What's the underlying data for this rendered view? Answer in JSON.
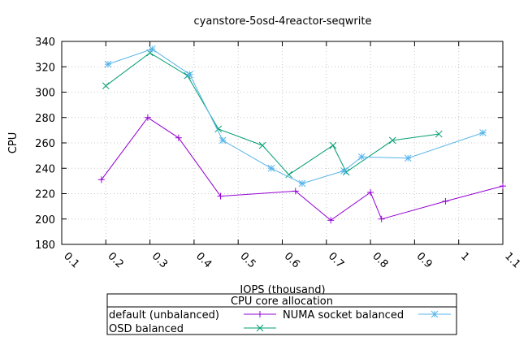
{
  "chart_data": {
    "type": "line",
    "title": "cyanstore-5osd-4reactor-seqwrite",
    "xlabel": "IOPS (thousand)",
    "ylabel": "CPU",
    "xlim": [
      0.1,
      1.1
    ],
    "ylim": [
      180,
      340
    ],
    "x_ticks": [
      "0.1",
      "0.2",
      "0.3",
      "0.4",
      "0.5",
      "0.6",
      "0.7",
      "0.8",
      "0.9",
      "1",
      "1.1"
    ],
    "y_ticks": [
      "180",
      "200",
      "220",
      "240",
      "260",
      "280",
      "300",
      "320",
      "340"
    ],
    "grid": true,
    "legend": {
      "title": "CPU core allocation",
      "placement": "below"
    },
    "series": [
      {
        "name": "default (unbalanced)",
        "color": "#9400d3",
        "marker": "plus",
        "points": [
          [
            0.19,
            231
          ],
          [
            0.295,
            280
          ],
          [
            0.365,
            264
          ],
          [
            0.46,
            218
          ],
          [
            0.63,
            222
          ],
          [
            0.71,
            199
          ],
          [
            0.8,
            221
          ],
          [
            0.825,
            200
          ],
          [
            0.97,
            214
          ],
          [
            1.1,
            226
          ]
        ]
      },
      {
        "name": "OSD balanced",
        "color": "#009e73",
        "marker": "x",
        "points": [
          [
            0.2,
            305
          ],
          [
            0.3,
            331
          ],
          [
            0.385,
            313
          ],
          [
            0.455,
            271
          ],
          [
            0.555,
            258
          ],
          [
            0.615,
            235
          ],
          [
            0.715,
            258
          ],
          [
            0.745,
            237
          ],
          [
            0.85,
            262
          ],
          [
            0.955,
            267
          ]
        ]
      },
      {
        "name": "NUMA socket balanced",
        "color": "#56b4e9",
        "marker": "star",
        "points": [
          [
            0.205,
            322
          ],
          [
            0.305,
            334
          ],
          [
            0.39,
            314
          ],
          [
            0.465,
            262
          ],
          [
            0.575,
            240
          ],
          [
            0.645,
            228
          ],
          [
            0.74,
            238
          ],
          [
            0.78,
            249
          ],
          [
            0.885,
            248
          ],
          [
            1.055,
            268
          ]
        ]
      }
    ]
  }
}
